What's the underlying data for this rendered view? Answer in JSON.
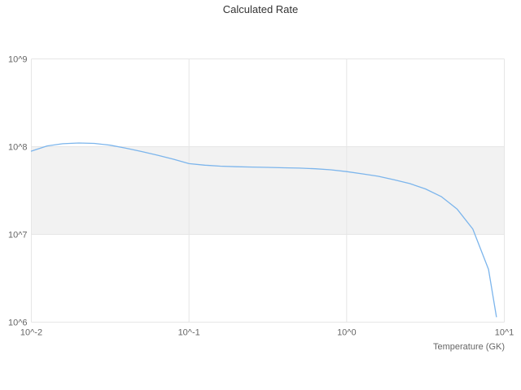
{
  "title": "Calculated Rate",
  "chart_data": {
    "type": "line",
    "title": "Calculated Rate",
    "xlabel": "Temperature (GK)",
    "ylabel": "",
    "x_scale": "log",
    "y_scale": "log",
    "xlim": [
      0.01,
      10
    ],
    "ylim": [
      1000000,
      1000000000
    ],
    "x_tick_values": [
      0.01,
      0.1,
      1,
      10
    ],
    "x_tick_labels": [
      "10^-2",
      "10^-1",
      "10^0",
      "10^1"
    ],
    "y_tick_values": [
      1000000,
      10000000,
      100000000,
      1000000000
    ],
    "y_tick_labels": [
      "10^6",
      "10^7",
      "10^8",
      "10^9"
    ],
    "grid": true,
    "legend": "none",
    "bands": [
      [
        10000000,
        100000000
      ]
    ],
    "band_color": "#f2f2f2",
    "grid_color": "#e6e6e6",
    "line_color": "#7cb5ec",
    "x": [
      0.01,
      0.0126,
      0.0158,
      0.02,
      0.0251,
      0.0316,
      0.0398,
      0.0501,
      0.0631,
      0.0794,
      0.1,
      0.126,
      0.158,
      0.2,
      0.251,
      0.316,
      0.398,
      0.501,
      0.631,
      0.794,
      1.0,
      1.26,
      1.58,
      2.0,
      2.51,
      3.16,
      3.98,
      5.01,
      6.31,
      7.94,
      8.91
    ],
    "y": [
      89000000,
      102000000,
      108000000,
      110000000,
      109000000,
      104000000,
      96000000,
      88000000,
      80000000,
      72000000,
      64000000,
      61500000,
      60000000,
      59000000,
      58500000,
      58000000,
      57500000,
      57000000,
      56000000,
      54500000,
      52000000,
      49000000,
      46000000,
      42000000,
      38000000,
      33000000,
      27000000,
      19500000,
      11500000,
      4000000,
      1150000
    ]
  }
}
